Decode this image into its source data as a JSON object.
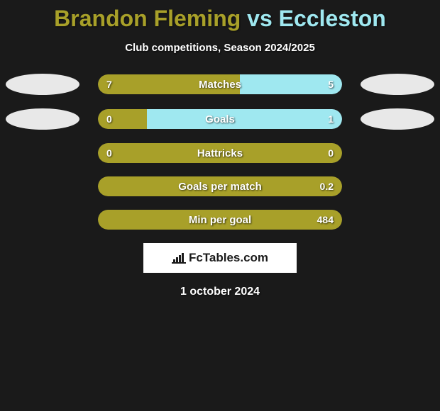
{
  "title": {
    "player1": "Brandon Fleming",
    "vs": "vs",
    "player2": "Eccleston"
  },
  "subtitle": "Club competitions, Season 2024/2025",
  "colors": {
    "player1": "#a8a029",
    "player2": "#9fe8f0",
    "oval1": "#e8e8e8",
    "oval2": "#e8e8e8",
    "bar_bg": "#2e2e2e",
    "background": "#1a1a1a"
  },
  "stats": [
    {
      "label": "Matches",
      "left_val": "7",
      "right_val": "5",
      "left_pct": 58,
      "right_pct": 42,
      "show_ovals": true
    },
    {
      "label": "Goals",
      "left_val": "0",
      "right_val": "1",
      "left_pct": 20,
      "right_pct": 80,
      "show_ovals": true
    },
    {
      "label": "Hattricks",
      "left_val": "0",
      "right_val": "0",
      "left_pct": 100,
      "right_pct": 0,
      "show_ovals": false
    },
    {
      "label": "Goals per match",
      "left_val": "",
      "right_val": "0.2",
      "left_pct": 100,
      "right_pct": 0,
      "show_ovals": false
    },
    {
      "label": "Min per goal",
      "left_val": "",
      "right_val": "484",
      "left_pct": 100,
      "right_pct": 0,
      "show_ovals": false
    }
  ],
  "logo": "FcTables.com",
  "date": "1 october 2024"
}
